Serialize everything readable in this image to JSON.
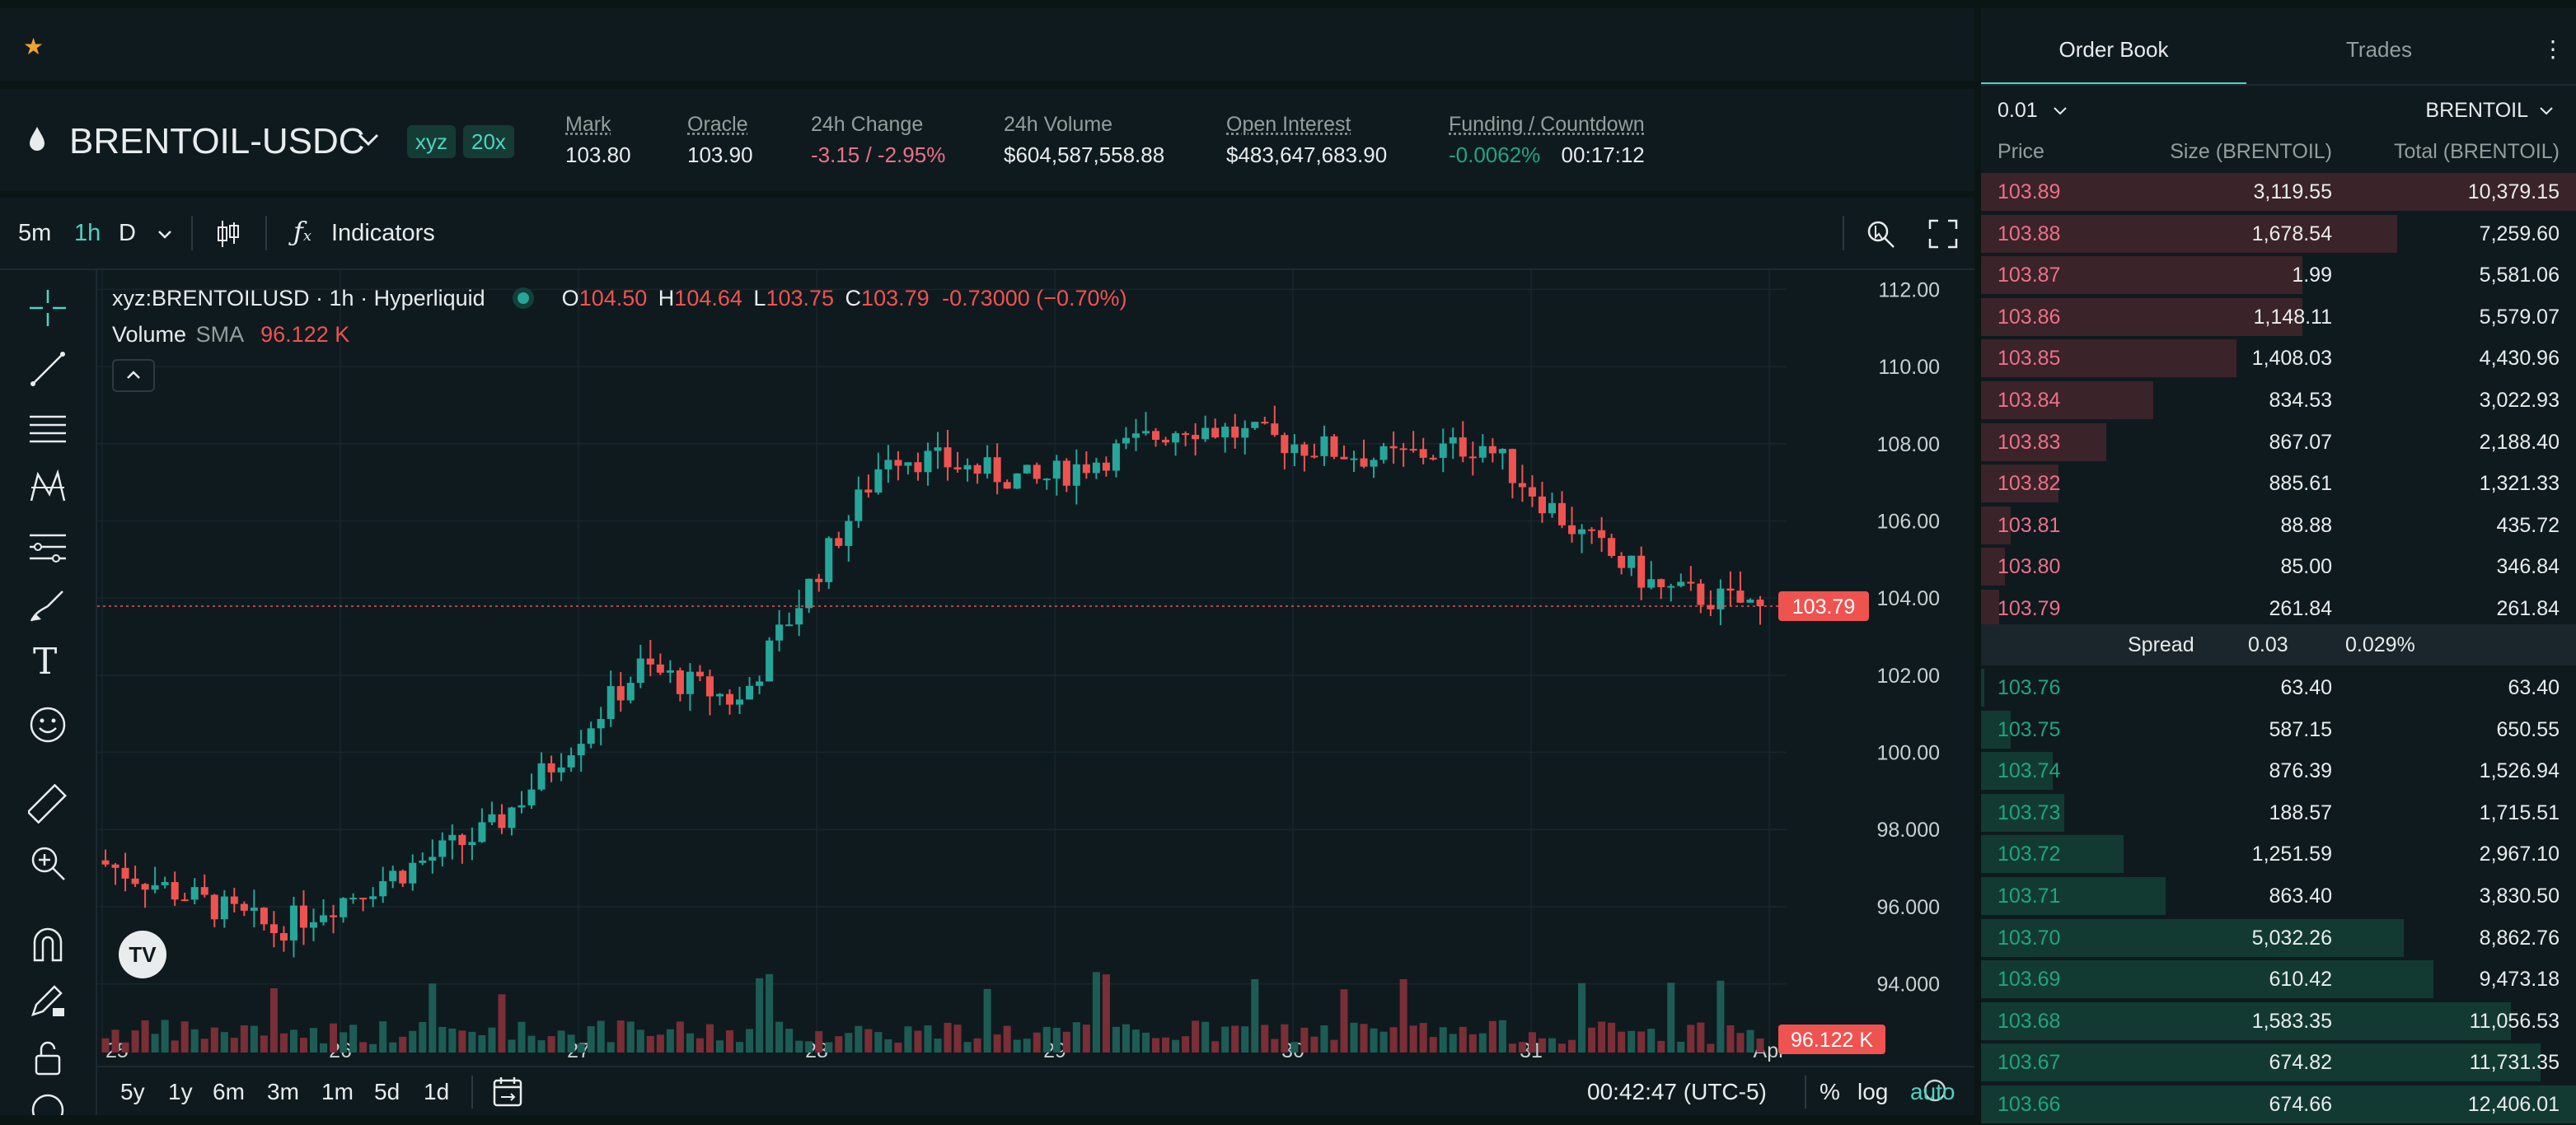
{
  "top_bar": {
    "favorite_icon": "star-icon"
  },
  "market": {
    "symbol": "BRENTOIL-USDC",
    "tag": "xyz",
    "leverage": "20x",
    "stats": [
      {
        "label": "Mark",
        "value": "103.80",
        "tone": "neutral"
      },
      {
        "label": "Oracle",
        "value": "103.90",
        "tone": "neutral"
      },
      {
        "label": "24h Change",
        "value": "-3.15 / -2.95%",
        "tone": "red"
      },
      {
        "label": "24h Volume",
        "value": "$604,587,558.88",
        "tone": "neutral"
      },
      {
        "label": "Open Interest",
        "value": "$483,647,683.90",
        "tone": "neutral"
      }
    ],
    "funding": {
      "label": "Funding / Countdown",
      "rate": "-0.0062%",
      "countdown": "00:17:12"
    }
  },
  "chart_toolbar": {
    "intervals": [
      "5m",
      "1h",
      "D"
    ],
    "active_interval": "1h",
    "indicators_label": "Indicators"
  },
  "legend": {
    "symbol_line": "xyz:BRENTOILUSD · 1h · Hyperliquid",
    "o_label": "O",
    "o": "104.50",
    "h_label": "H",
    "h": "104.64",
    "l_label": "L",
    "l": "103.75",
    "c_label": "C",
    "c": "103.79",
    "change": "-0.73000 (−0.70%)",
    "volume_label": "Volume",
    "sma_label": "SMA",
    "volume_value": "96.122 K"
  },
  "chart_data": {
    "type": "candlestick",
    "y_ticks": [
      "112.00",
      "110.00",
      "108.00",
      "106.00",
      "104.00",
      "102.00",
      "100.00",
      "98.000",
      "96.000",
      "94.000"
    ],
    "y_tick_values": [
      112,
      110,
      108,
      106,
      104,
      102,
      100,
      98,
      96,
      94
    ],
    "x_ticks": [
      "25",
      "26",
      "27",
      "28",
      "29",
      "30",
      "31",
      "Apr"
    ],
    "last_price_label": "103.79",
    "last_price": 103.79,
    "last_volume_label": "96.122 K",
    "color_up": "#26a69a",
    "color_down": "#ef5350",
    "ylim": [
      93.5,
      112.5
    ]
  },
  "bottom_bar": {
    "ranges": [
      "5y",
      "1y",
      "6m",
      "3m",
      "1m",
      "5d",
      "1d"
    ],
    "time": "00:42:47 (UTC-5)",
    "percent_label": "%",
    "log_label": "log",
    "auto_label": "auto"
  },
  "order_book": {
    "tabs": [
      "Order Book",
      "Trades"
    ],
    "active_tab": "Order Book",
    "tick_size": "0.01",
    "unit": "BRENTOIL",
    "columns": [
      "Price",
      "Size (BRENTOIL)",
      "Total (BRENTOIL)"
    ],
    "asks": [
      {
        "price": "103.89",
        "size": "3,119.55",
        "total": "10,379.15",
        "depth": 1.0
      },
      {
        "price": "103.88",
        "size": "1,678.54",
        "total": "7,259.60",
        "depth": 0.7
      },
      {
        "price": "103.87",
        "size": "1.99",
        "total": "5,581.06",
        "depth": 0.54
      },
      {
        "price": "103.86",
        "size": "1,148.11",
        "total": "5,579.07",
        "depth": 0.54
      },
      {
        "price": "103.85",
        "size": "1,408.03",
        "total": "4,430.96",
        "depth": 0.43
      },
      {
        "price": "103.84",
        "size": "834.53",
        "total": "3,022.93",
        "depth": 0.29
      },
      {
        "price": "103.83",
        "size": "867.07",
        "total": "2,188.40",
        "depth": 0.21
      },
      {
        "price": "103.82",
        "size": "885.61",
        "total": "1,321.33",
        "depth": 0.13
      },
      {
        "price": "103.81",
        "size": "88.88",
        "total": "435.72",
        "depth": 0.05
      },
      {
        "price": "103.80",
        "size": "85.00",
        "total": "346.84",
        "depth": 0.04
      },
      {
        "price": "103.79",
        "size": "261.84",
        "total": "261.84",
        "depth": 0.03
      }
    ],
    "spread": {
      "label": "Spread",
      "value": "0.03",
      "percent": "0.029%"
    },
    "bids": [
      {
        "price": "103.76",
        "size": "63.40",
        "total": "63.40",
        "depth": 0.005
      },
      {
        "price": "103.75",
        "size": "587.15",
        "total": "650.55",
        "depth": 0.05
      },
      {
        "price": "103.74",
        "size": "876.39",
        "total": "1,526.94",
        "depth": 0.12
      },
      {
        "price": "103.73",
        "size": "188.57",
        "total": "1,715.51",
        "depth": 0.14
      },
      {
        "price": "103.72",
        "size": "1,251.59",
        "total": "2,967.10",
        "depth": 0.24
      },
      {
        "price": "103.71",
        "size": "863.40",
        "total": "3,830.50",
        "depth": 0.31
      },
      {
        "price": "103.70",
        "size": "5,032.26",
        "total": "8,862.76",
        "depth": 0.71
      },
      {
        "price": "103.69",
        "size": "610.42",
        "total": "9,473.18",
        "depth": 0.76
      },
      {
        "price": "103.68",
        "size": "1,583.35",
        "total": "11,056.53",
        "depth": 0.89
      },
      {
        "price": "103.67",
        "size": "674.82",
        "total": "11,731.35",
        "depth": 0.94
      },
      {
        "price": "103.66",
        "size": "674.66",
        "total": "12,406.01",
        "depth": 1.0
      }
    ]
  }
}
